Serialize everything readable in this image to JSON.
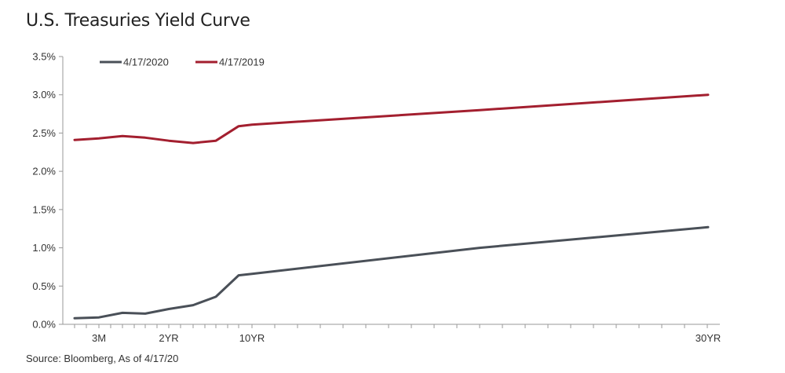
{
  "chart_data": {
    "type": "line",
    "title": "U.S. Treasuries Yield Curve",
    "source": "Source: Bloomberg, As of 4/17/20",
    "x_scale": "maturity (years)",
    "x": [
      0.0833,
      0.25,
      0.5,
      1,
      2,
      3,
      5,
      7,
      10,
      20,
      30
    ],
    "x_ticks": [
      {
        "value": 0.25,
        "label": "3M"
      },
      {
        "value": 2,
        "label": "2YR"
      },
      {
        "value": 10,
        "label": "10YR"
      },
      {
        "value": 30,
        "label": "30YR"
      }
    ],
    "ylim": [
      0,
      3.5
    ],
    "y_ticks": [
      0.0,
      0.5,
      1.0,
      1.5,
      2.0,
      2.5,
      3.0,
      3.5
    ],
    "y_tick_labels": [
      "0.0%",
      "0.5%",
      "1.0%",
      "1.5%",
      "2.0%",
      "2.5%",
      "3.0%",
      "3.5%"
    ],
    "grid": false,
    "legend_position": "top-left",
    "series": [
      {
        "name": "4/17/2020",
        "color": "#4a5058",
        "values": [
          0.08,
          0.09,
          0.15,
          0.14,
          0.2,
          0.25,
          0.36,
          0.64,
          0.66,
          1.0,
          1.27
        ]
      },
      {
        "name": "4/17/2019",
        "color": "#a31f2f",
        "values": [
          2.41,
          2.43,
          2.46,
          2.44,
          2.4,
          2.37,
          2.4,
          2.59,
          2.61,
          2.8,
          3.0
        ]
      }
    ]
  }
}
